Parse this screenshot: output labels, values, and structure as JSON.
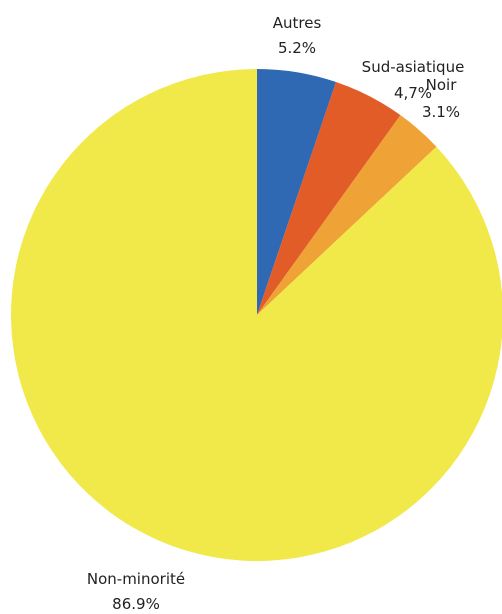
{
  "chart_data": {
    "type": "pie",
    "title": "",
    "start_angle_deg": 0,
    "direction": "clockwise",
    "slices": [
      {
        "label": "Autres",
        "value": 5.2,
        "value_label": "5.2%",
        "color": "#2f68b3"
      },
      {
        "label": "Sud-asiatique",
        "value": 4.7,
        "value_label": "4,7%",
        "color": "#e25c27"
      },
      {
        "label": "Noir",
        "value": 3.1,
        "value_label": "3.1%",
        "color": "#efa235"
      },
      {
        "label": "Non-minorité",
        "value": 86.9,
        "value_label": "86.9%",
        "color": "#f1e94a"
      }
    ]
  }
}
